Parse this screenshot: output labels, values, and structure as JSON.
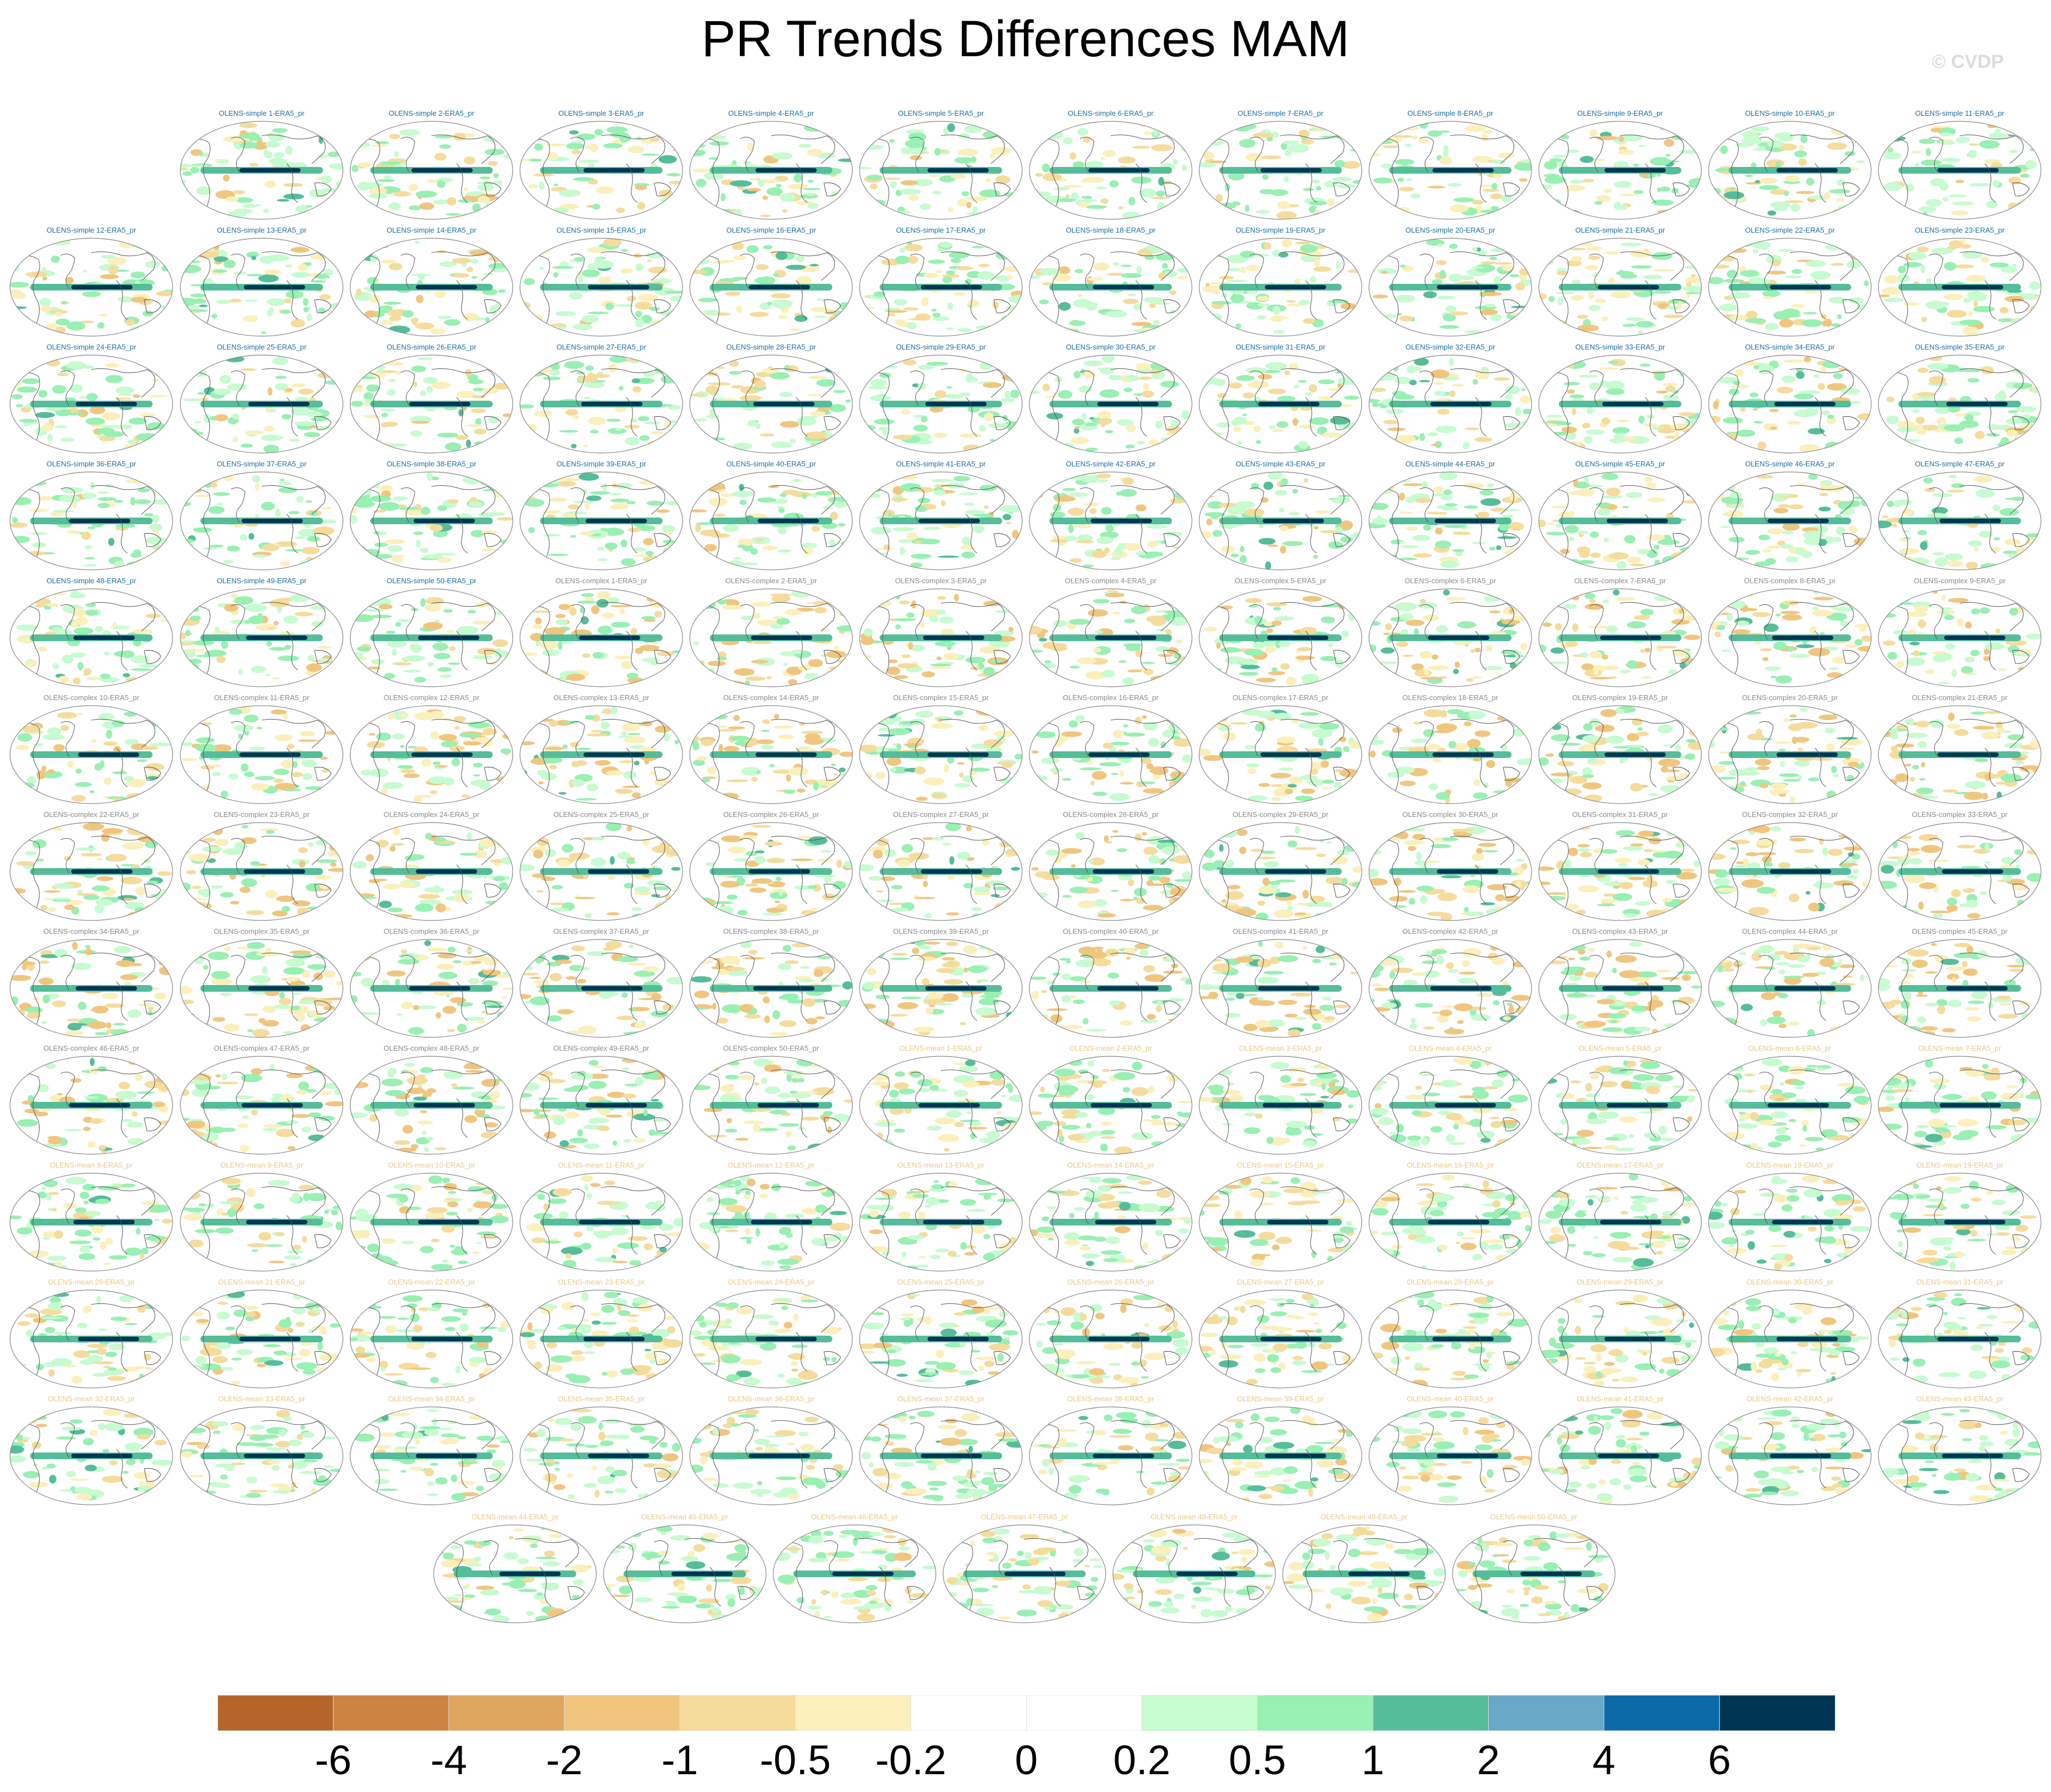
{
  "title": "PR Trends Differences MAM",
  "copyright": "© CVDP",
  "chart_data": {
    "type": "heatmap",
    "title": "PR Trends Differences MAM",
    "projection": "global robinson map panels",
    "panels": [
      {
        "label": "OLENS-simple 1-ERA5_pr",
        "group": "simple"
      },
      {
        "label": "OLENS-simple 2-ERA5_pr",
        "group": "simple"
      },
      {
        "label": "OLENS-simple 3-ERA5_pr",
        "group": "simple"
      },
      {
        "label": "OLENS-simple 4-ERA5_pr",
        "group": "simple"
      },
      {
        "label": "OLENS-simple 5-ERA5_pr",
        "group": "simple"
      },
      {
        "label": "OLENS-simple 6-ERA5_pr",
        "group": "simple"
      },
      {
        "label": "OLENS-simple 7-ERA5_pr",
        "group": "simple"
      },
      {
        "label": "OLENS-simple 8-ERA5_pr",
        "group": "simple"
      },
      {
        "label": "OLENS-simple 9-ERA5_pr",
        "group": "simple"
      },
      {
        "label": "OLENS-simple 10-ERA5_pr",
        "group": "simple"
      },
      {
        "label": "OLENS-simple 11-ERA5_pr",
        "group": "simple"
      },
      {
        "label": "OLENS-simple 12-ERA5_pr",
        "group": "simple"
      },
      {
        "label": "OLENS-simple 13-ERA5_pr",
        "group": "simple"
      },
      {
        "label": "OLENS-simple 14-ERA5_pr",
        "group": "simple"
      },
      {
        "label": "OLENS-simple 15-ERA5_pr",
        "group": "simple"
      },
      {
        "label": "OLENS-simple 16-ERA5_pr",
        "group": "simple"
      },
      {
        "label": "OLENS-simple 17-ERA5_pr",
        "group": "simple"
      },
      {
        "label": "OLENS-simple 18-ERA5_pr",
        "group": "simple"
      },
      {
        "label": "OLENS-simple 19-ERA5_pr",
        "group": "simple"
      },
      {
        "label": "OLENS-simple 20-ERA5_pr",
        "group": "simple"
      },
      {
        "label": "OLENS-simple 21-ERA5_pr",
        "group": "simple"
      },
      {
        "label": "OLENS-simple 22-ERA5_pr",
        "group": "simple"
      },
      {
        "label": "OLENS-simple 23-ERA5_pr",
        "group": "simple"
      },
      {
        "label": "OLENS-simple 24-ERA5_pr",
        "group": "simple"
      },
      {
        "label": "OLENS-simple 25-ERA5_pr",
        "group": "simple"
      },
      {
        "label": "OLENS-simple 26-ERA5_pr",
        "group": "simple"
      },
      {
        "label": "OLENS-simple 27-ERA5_pr",
        "group": "simple"
      },
      {
        "label": "OLENS-simple 28-ERA5_pr",
        "group": "simple"
      },
      {
        "label": "OLENS-simple 29-ERA5_pr",
        "group": "simple"
      },
      {
        "label": "OLENS-simple 30-ERA5_pr",
        "group": "simple"
      },
      {
        "label": "OLENS-simple 31-ERA5_pr",
        "group": "simple"
      },
      {
        "label": "OLENS-simple 32-ERA5_pr",
        "group": "simple"
      },
      {
        "label": "OLENS-simple 33-ERA5_pr",
        "group": "simple"
      },
      {
        "label": "OLENS-simple 34-ERA5_pr",
        "group": "simple"
      },
      {
        "label": "OLENS-simple 35-ERA5_pr",
        "group": "simple"
      },
      {
        "label": "OLENS-simple 36-ERA5_pr",
        "group": "simple"
      },
      {
        "label": "OLENS-simple 37-ERA5_pr",
        "group": "simple"
      },
      {
        "label": "OLENS-simple 38-ERA5_pr",
        "group": "simple"
      },
      {
        "label": "OLENS-simple 39-ERA5_pr",
        "group": "simple"
      },
      {
        "label": "OLENS-simple 40-ERA5_pr",
        "group": "simple"
      },
      {
        "label": "OLENS-simple 41-ERA5_pr",
        "group": "simple"
      },
      {
        "label": "OLENS-simple 42-ERA5_pr",
        "group": "simple"
      },
      {
        "label": "OLENS-simple 43-ERA5_pr",
        "group": "simple"
      },
      {
        "label": "OLENS-simple 44-ERA5_pr",
        "group": "simple"
      },
      {
        "label": "OLENS-simple 45-ERA5_pr",
        "group": "simple"
      },
      {
        "label": "OLENS-simple 46-ERA5_pr",
        "group": "simple"
      },
      {
        "label": "OLENS-simple 47-ERA5_pr",
        "group": "simple"
      },
      {
        "label": "OLENS-simple 48-ERA5_pr",
        "group": "simple"
      },
      {
        "label": "OLENS-simple 49-ERA5_pr",
        "group": "simple"
      },
      {
        "label": "OLENS-simple 50-ERA5_pr",
        "group": "simple"
      },
      {
        "label": "OLENS-complex 1-ERA5_pr",
        "group": "complex"
      },
      {
        "label": "OLENS-complex 2-ERA5_pr",
        "group": "complex"
      },
      {
        "label": "OLENS-complex 3-ERA5_pr",
        "group": "complex"
      },
      {
        "label": "OLENS-complex 4-ERA5_pr",
        "group": "complex"
      },
      {
        "label": "OLENS-complex 5-ERA5_pr",
        "group": "complex"
      },
      {
        "label": "OLENS-complex 6-ERA5_pr",
        "group": "complex"
      },
      {
        "label": "OLENS-complex 7-ERA5_pr",
        "group": "complex"
      },
      {
        "label": "OLENS-complex 8-ERA5_pr",
        "group": "complex"
      },
      {
        "label": "OLENS-complex 9-ERA5_pr",
        "group": "complex"
      },
      {
        "label": "OLENS-complex 10-ERA5_pr",
        "group": "complex"
      },
      {
        "label": "OLENS-complex 11-ERA5_pr",
        "group": "complex"
      },
      {
        "label": "OLENS-complex 12-ERA5_pr",
        "group": "complex"
      },
      {
        "label": "OLENS-complex 13-ERA5_pr",
        "group": "complex"
      },
      {
        "label": "OLENS-complex 14-ERA5_pr",
        "group": "complex"
      },
      {
        "label": "OLENS-complex 15-ERA5_pr",
        "group": "complex"
      },
      {
        "label": "OLENS-complex 16-ERA5_pr",
        "group": "complex"
      },
      {
        "label": "OLENS-complex 17-ERA5_pr",
        "group": "complex"
      },
      {
        "label": "OLENS-complex 18-ERA5_pr",
        "group": "complex"
      },
      {
        "label": "OLENS-complex 19-ERA5_pr",
        "group": "complex"
      },
      {
        "label": "OLENS-complex 20-ERA5_pr",
        "group": "complex"
      },
      {
        "label": "OLENS-complex 21-ERA5_pr",
        "group": "complex"
      },
      {
        "label": "OLENS-complex 22-ERA5_pr",
        "group": "complex"
      },
      {
        "label": "OLENS-complex 23-ERA5_pr",
        "group": "complex"
      },
      {
        "label": "OLENS-complex 24-ERA5_pr",
        "group": "complex"
      },
      {
        "label": "OLENS-complex 25-ERA5_pr",
        "group": "complex"
      },
      {
        "label": "OLENS-complex 26-ERA5_pr",
        "group": "complex"
      },
      {
        "label": "OLENS-complex 27-ERA5_pr",
        "group": "complex"
      },
      {
        "label": "OLENS-complex 28-ERA5_pr",
        "group": "complex"
      },
      {
        "label": "OLENS-complex 29-ERA5_pr",
        "group": "complex"
      },
      {
        "label": "OLENS-complex 30-ERA5_pr",
        "group": "complex"
      },
      {
        "label": "OLENS-complex 31-ERA5_pr",
        "group": "complex"
      },
      {
        "label": "OLENS-complex 32-ERA5_pr",
        "group": "complex"
      },
      {
        "label": "OLENS-complex 33-ERA5_pr",
        "group": "complex"
      },
      {
        "label": "OLENS-complex 34-ERA5_pr",
        "group": "complex"
      },
      {
        "label": "OLENS-complex 35-ERA5_pr",
        "group": "complex"
      },
      {
        "label": "OLENS-complex 36-ERA5_pr",
        "group": "complex"
      },
      {
        "label": "OLENS-complex 37-ERA5_pr",
        "group": "complex"
      },
      {
        "label": "OLENS-complex 38-ERA5_pr",
        "group": "complex"
      },
      {
        "label": "OLENS-complex 39-ERA5_pr",
        "group": "complex"
      },
      {
        "label": "OLENS-complex 40-ERA5_pr",
        "group": "complex"
      },
      {
        "label": "OLENS-complex 41-ERA5_pr",
        "group": "complex"
      },
      {
        "label": "OLENS-complex 42-ERA5_pr",
        "group": "complex"
      },
      {
        "label": "OLENS-complex 43-ERA5_pr",
        "group": "complex"
      },
      {
        "label": "OLENS-complex 44-ERA5_pr",
        "group": "complex"
      },
      {
        "label": "OLENS-complex 45-ERA5_pr",
        "group": "complex"
      },
      {
        "label": "OLENS-complex 46-ERA5_pr",
        "group": "complex"
      },
      {
        "label": "OLENS-complex 47-ERA5_pr",
        "group": "complex"
      },
      {
        "label": "OLENS-complex 48-ERA5_pr",
        "group": "complex"
      },
      {
        "label": "OLENS-complex 49-ERA5_pr",
        "group": "complex"
      },
      {
        "label": "OLENS-complex 50-ERA5_pr",
        "group": "complex"
      },
      {
        "label": "OLENS-mean 1-ERA5_pr",
        "group": "mean"
      },
      {
        "label": "OLENS-mean 2-ERA5_pr",
        "group": "mean"
      },
      {
        "label": "OLENS-mean 3-ERA5_pr",
        "group": "mean"
      },
      {
        "label": "OLENS-mean 4-ERA5_pr",
        "group": "mean"
      },
      {
        "label": "OLENS-mean 5-ERA5_pr",
        "group": "mean"
      },
      {
        "label": "OLENS-mean 6-ERA5_pr",
        "group": "mean"
      },
      {
        "label": "OLENS-mean 7-ERA5_pr",
        "group": "mean"
      },
      {
        "label": "OLENS-mean 8-ERA5_pr",
        "group": "mean"
      },
      {
        "label": "OLENS-mean 9-ERA5_pr",
        "group": "mean"
      },
      {
        "label": "OLENS-mean 10-ERA5_pr",
        "group": "mean"
      },
      {
        "label": "OLENS-mean 11-ERA5_pr",
        "group": "mean"
      },
      {
        "label": "OLENS-mean 12-ERA5_pr",
        "group": "mean"
      },
      {
        "label": "OLENS-mean 13-ERA5_pr",
        "group": "mean"
      },
      {
        "label": "OLENS-mean 14-ERA5_pr",
        "group": "mean"
      },
      {
        "label": "OLENS-mean 15-ERA5_pr",
        "group": "mean"
      },
      {
        "label": "OLENS-mean 16-ERA5_pr",
        "group": "mean"
      },
      {
        "label": "OLENS-mean 17-ERA5_pr",
        "group": "mean"
      },
      {
        "label": "OLENS-mean 18-ERA5_pr",
        "group": "mean"
      },
      {
        "label": "OLENS-mean 19-ERA5_pr",
        "group": "mean"
      },
      {
        "label": "OLENS-mean 20-ERA5_pr",
        "group": "mean"
      },
      {
        "label": "OLENS-mean 21-ERA5_pr",
        "group": "mean"
      },
      {
        "label": "OLENS-mean 22-ERA5_pr",
        "group": "mean"
      },
      {
        "label": "OLENS-mean 23-ERA5_pr",
        "group": "mean"
      },
      {
        "label": "OLENS-mean 24-ERA5_pr",
        "group": "mean"
      },
      {
        "label": "OLENS-mean 25-ERA5_pr",
        "group": "mean"
      },
      {
        "label": "OLENS-mean 26-ERA5_pr",
        "group": "mean"
      },
      {
        "label": "OLENS-mean 27-ERA5_pr",
        "group": "mean"
      },
      {
        "label": "OLENS-mean 28-ERA5_pr",
        "group": "mean"
      },
      {
        "label": "OLENS-mean 29-ERA5_pr",
        "group": "mean"
      },
      {
        "label": "OLENS-mean 30-ERA5_pr",
        "group": "mean"
      },
      {
        "label": "OLENS-mean 31-ERA5_pr",
        "group": "mean"
      },
      {
        "label": "OLENS-mean 32-ERA5_pr",
        "group": "mean"
      },
      {
        "label": "OLENS-mean 33-ERA5_pr",
        "group": "mean"
      },
      {
        "label": "OLENS-mean 34-ERA5_pr",
        "group": "mean"
      },
      {
        "label": "OLENS-mean 35-ERA5_pr",
        "group": "mean"
      },
      {
        "label": "OLENS-mean 36-ERA5_pr",
        "group": "mean"
      },
      {
        "label": "OLENS-mean 37-ERA5_pr",
        "group": "mean"
      },
      {
        "label": "OLENS-mean 38-ERA5_pr",
        "group": "mean"
      },
      {
        "label": "OLENS-mean 39-ERA5_pr",
        "group": "mean"
      },
      {
        "label": "OLENS-mean 40-ERA5_pr",
        "group": "mean"
      },
      {
        "label": "OLENS-mean 41-ERA5_pr",
        "group": "mean"
      },
      {
        "label": "OLENS-mean 42-ERA5_pr",
        "group": "mean"
      },
      {
        "label": "OLENS-mean 43-ERA5_pr",
        "group": "mean"
      },
      {
        "label": "OLENS-mean 44-ERA5_pr",
        "group": "mean"
      },
      {
        "label": "OLENS-mean 45-ERA5_pr",
        "group": "mean"
      },
      {
        "label": "OLENS-mean 46-ERA5_pr",
        "group": "mean"
      },
      {
        "label": "OLENS-mean 47-ERA5_pr",
        "group": "mean"
      },
      {
        "label": "OLENS-mean 48-ERA5_pr",
        "group": "mean"
      },
      {
        "label": "OLENS-mean 49-ERA5_pr",
        "group": "mean"
      },
      {
        "label": "OLENS-mean 50-ERA5_pr",
        "group": "mean"
      }
    ],
    "group_label_colors": {
      "simple": "#1a6fa3",
      "complex": "#8a8a8a",
      "mean": "#e8c98a"
    },
    "colorbar": {
      "levels": [
        "-6",
        "-4",
        "-2",
        "-1",
        "-0.5",
        "-0.2",
        "0",
        "0.2",
        "0.5",
        "1",
        "2",
        "4",
        "6"
      ],
      "colors": [
        "#b5652a",
        "#cc8440",
        "#dfa660",
        "#f0c67f",
        "#f5dc9c",
        "#fbf0bb",
        "#ffffff",
        "#ffffff",
        "#c7fbd0",
        "#98f0b2",
        "#55bd9a",
        "#6aa8c8",
        "#0d6aa8",
        "#003654"
      ]
    }
  }
}
